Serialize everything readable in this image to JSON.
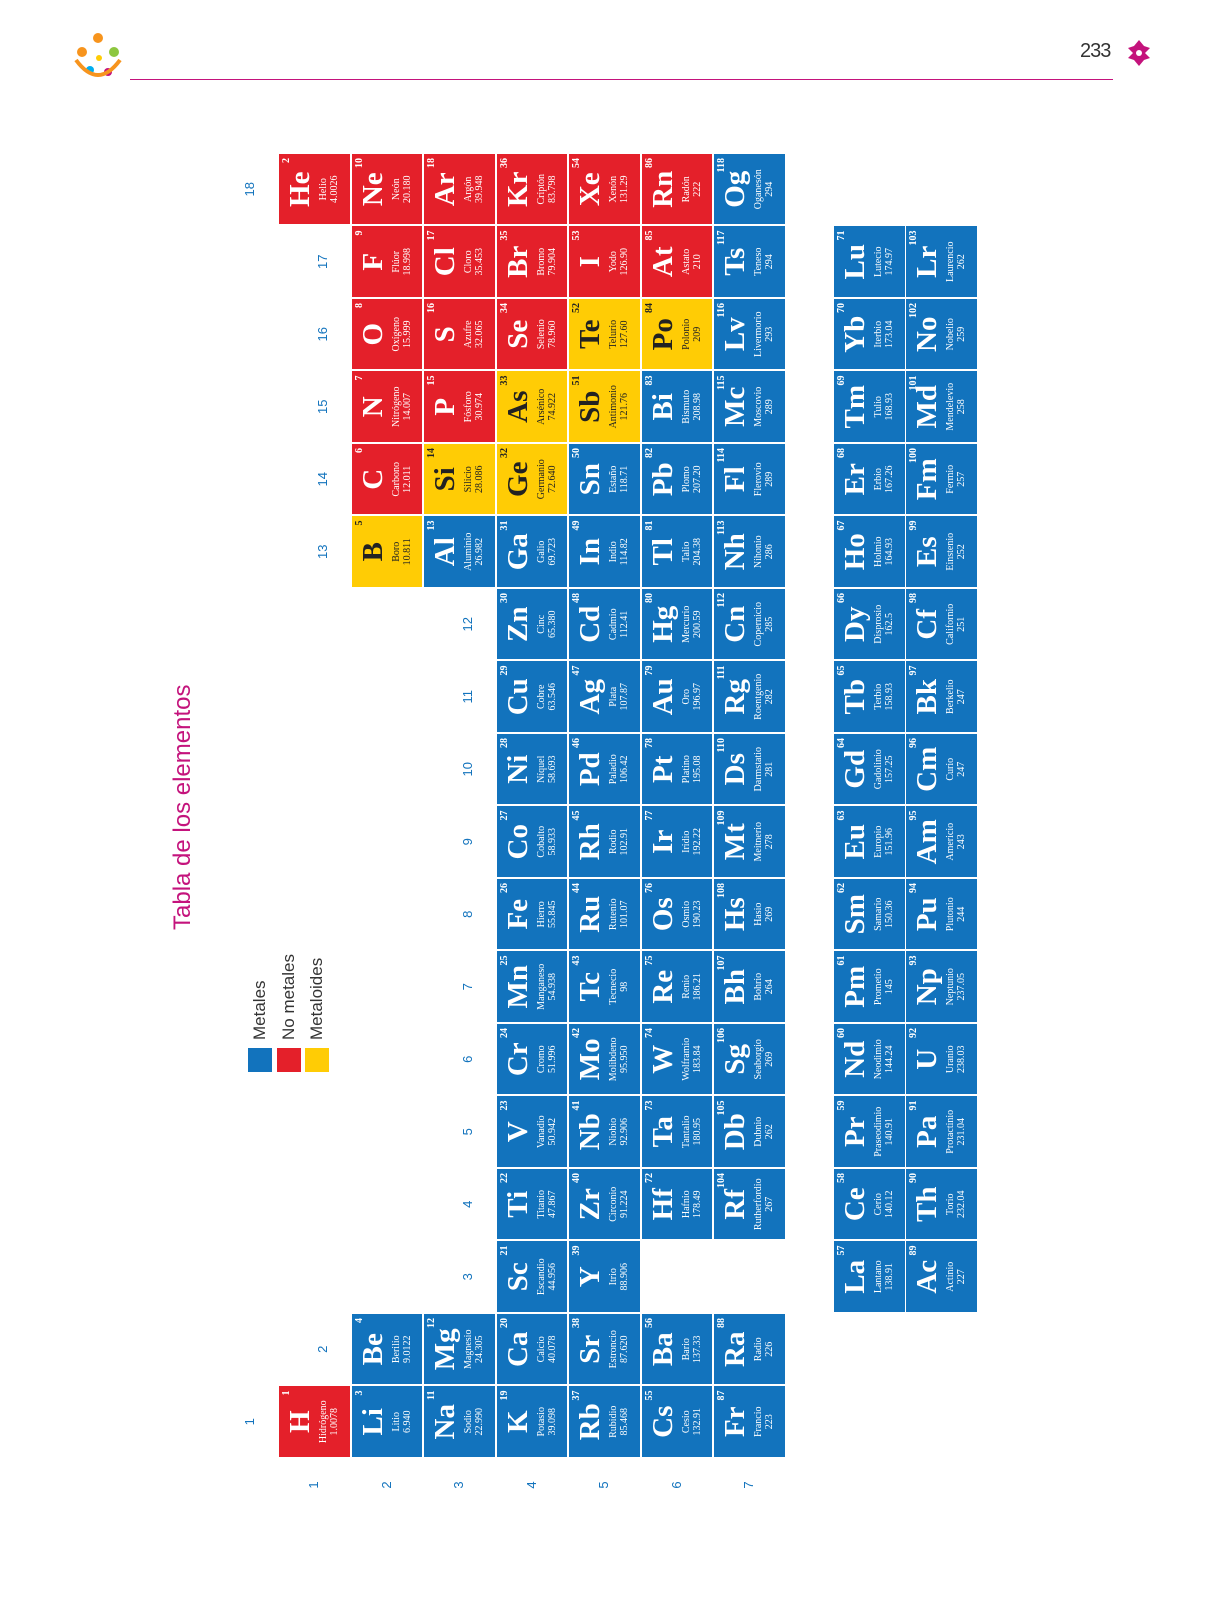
{
  "header": {
    "page_number": "233"
  },
  "title": "Tabla de los elementos",
  "legend": [
    {
      "label": "Metales",
      "color": "#1273bd"
    },
    {
      "label": "No metales",
      "color": "#e4202a"
    },
    {
      "label": "Metaloides",
      "color": "#ffcc05"
    }
  ],
  "group_labels": [
    1,
    2,
    3,
    4,
    5,
    6,
    7,
    8,
    9,
    10,
    11,
    12,
    13,
    14,
    15,
    16,
    17,
    18
  ],
  "period_labels": [
    1,
    2,
    3,
    4,
    5,
    6,
    7
  ],
  "periods": [
    [
      {
        "number": 1,
        "symbol": "H",
        "name": "Hidrógeno",
        "mass": "1.0078",
        "color": "#e4202a"
      },
      {
        "number": 2,
        "symbol": "He",
        "name": "Helio",
        "mass": "4.0026",
        "color": "#e4202a"
      }
    ],
    [
      {
        "number": 3,
        "symbol": "Li",
        "name": "Litio",
        "mass": "6.940",
        "color": "#1273bd"
      },
      {
        "number": 4,
        "symbol": "Be",
        "name": "Berilio",
        "mass": "9.0122",
        "color": "#1273bd"
      },
      {
        "number": 5,
        "symbol": "B",
        "name": "Boro",
        "mass": "10.811",
        "color": "#ffcc05"
      },
      {
        "number": 6,
        "symbol": "C",
        "name": "Carbono",
        "mass": "12.011",
        "color": "#e4202a"
      },
      {
        "number": 7,
        "symbol": "N",
        "name": "Nitrógeno",
        "mass": "14.007",
        "color": "#e4202a"
      },
      {
        "number": 8,
        "symbol": "O",
        "name": "Oxígeno",
        "mass": "15.999",
        "color": "#e4202a"
      },
      {
        "number": 9,
        "symbol": "F",
        "name": "Flúor",
        "mass": "18.998",
        "color": "#e4202a"
      },
      {
        "number": 10,
        "symbol": "Ne",
        "name": "Neón",
        "mass": "20.180",
        "color": "#e4202a"
      }
    ],
    [
      {
        "number": 11,
        "symbol": "Na",
        "name": "Sodio",
        "mass": "22.990",
        "color": "#1273bd"
      },
      {
        "number": 12,
        "symbol": "Mg",
        "name": "Magnesio",
        "mass": "24.305",
        "color": "#1273bd"
      },
      {
        "number": 13,
        "symbol": "Al",
        "name": "Aluminio",
        "mass": "26.982",
        "color": "#1273bd"
      },
      {
        "number": 14,
        "symbol": "Si",
        "name": "Silicio",
        "mass": "28.086",
        "color": "#ffcc05"
      },
      {
        "number": 15,
        "symbol": "P",
        "name": "Fósforo",
        "mass": "30.974",
        "color": "#e4202a"
      },
      {
        "number": 16,
        "symbol": "S",
        "name": "Azufre",
        "mass": "32.065",
        "color": "#e4202a"
      },
      {
        "number": 17,
        "symbol": "Cl",
        "name": "Cloro",
        "mass": "35.453",
        "color": "#e4202a"
      },
      {
        "number": 18,
        "symbol": "Ar",
        "name": "Argón",
        "mass": "39.948",
        "color": "#e4202a"
      }
    ],
    [
      {
        "number": 19,
        "symbol": "K",
        "name": "Potasio",
        "mass": "39.098",
        "color": "#1273bd"
      },
      {
        "number": 20,
        "symbol": "Ca",
        "name": "Calcio",
        "mass": "40.078",
        "color": "#1273bd"
      },
      {
        "number": 21,
        "symbol": "Sc",
        "name": "Escandio",
        "mass": "44.956",
        "color": "#1273bd"
      },
      {
        "number": 22,
        "symbol": "Ti",
        "name": "Titanio",
        "mass": "47.867",
        "color": "#1273bd"
      },
      {
        "number": 23,
        "symbol": "V",
        "name": "Vanadio",
        "mass": "50.942",
        "color": "#1273bd"
      },
      {
        "number": 24,
        "symbol": "Cr",
        "name": "Cromo",
        "mass": "51.996",
        "color": "#1273bd"
      },
      {
        "number": 25,
        "symbol": "Mn",
        "name": "Manganeso",
        "mass": "54.938",
        "color": "#1273bd"
      },
      {
        "number": 26,
        "symbol": "Fe",
        "name": "Hierro",
        "mass": "55.845",
        "color": "#1273bd"
      },
      {
        "number": 27,
        "symbol": "Co",
        "name": "Cobalto",
        "mass": "58.933",
        "color": "#1273bd"
      },
      {
        "number": 28,
        "symbol": "Ni",
        "name": "Níquel",
        "mass": "58.693",
        "color": "#1273bd"
      },
      {
        "number": 29,
        "symbol": "Cu",
        "name": "Cobre",
        "mass": "63.546",
        "color": "#1273bd"
      },
      {
        "number": 30,
        "symbol": "Zn",
        "name": "Cinc",
        "mass": "65.380",
        "color": "#1273bd"
      },
      {
        "number": 31,
        "symbol": "Ga",
        "name": "Galio",
        "mass": "69.723",
        "color": "#1273bd"
      },
      {
        "number": 32,
        "symbol": "Ge",
        "name": "Germanio",
        "mass": "72.640",
        "color": "#ffcc05"
      },
      {
        "number": 33,
        "symbol": "As",
        "name": "Arsénico",
        "mass": "74.922",
        "color": "#ffcc05"
      },
      {
        "number": 34,
        "symbol": "Se",
        "name": "Selenio",
        "mass": "78.960",
        "color": "#e4202a"
      },
      {
        "number": 35,
        "symbol": "Br",
        "name": "Bromo",
        "mass": "79.904",
        "color": "#e4202a"
      },
      {
        "number": 36,
        "symbol": "Kr",
        "name": "Criptón",
        "mass": "83.798",
        "color": "#e4202a"
      }
    ],
    [
      {
        "number": 37,
        "symbol": "Rb",
        "name": "Rubidio",
        "mass": "85.468",
        "color": "#1273bd"
      },
      {
        "number": 38,
        "symbol": "Sr",
        "name": "Estroncio",
        "mass": "87.620",
        "color": "#1273bd"
      },
      {
        "number": 39,
        "symbol": "Y",
        "name": "Itrio",
        "mass": "88.906",
        "color": "#1273bd"
      },
      {
        "number": 40,
        "symbol": "Zr",
        "name": "Circonio",
        "mass": "91.224",
        "color": "#1273bd"
      },
      {
        "number": 41,
        "symbol": "Nb",
        "name": "Niobio",
        "mass": "92.906",
        "color": "#1273bd"
      },
      {
        "number": 42,
        "symbol": "Mo",
        "name": "Molibdeno",
        "mass": "95.950",
        "color": "#1273bd"
      },
      {
        "number": 43,
        "symbol": "Tc",
        "name": "Tecnecio",
        "mass": "98",
        "color": "#1273bd"
      },
      {
        "number": 44,
        "symbol": "Ru",
        "name": "Rutenio",
        "mass": "101.07",
        "color": "#1273bd"
      },
      {
        "number": 45,
        "symbol": "Rh",
        "name": "Rodio",
        "mass": "102.91",
        "color": "#1273bd"
      },
      {
        "number": 46,
        "symbol": "Pd",
        "name": "Paladio",
        "mass": "106.42",
        "color": "#1273bd"
      },
      {
        "number": 47,
        "symbol": "Ag",
        "name": "Plata",
        "mass": "107.87",
        "color": "#1273bd"
      },
      {
        "number": 48,
        "symbol": "Cd",
        "name": "Cadmio",
        "mass": "112.41",
        "color": "#1273bd"
      },
      {
        "number": 49,
        "symbol": "In",
        "name": "Indio",
        "mass": "114.82",
        "color": "#1273bd"
      },
      {
        "number": 50,
        "symbol": "Sn",
        "name": "Estaño",
        "mass": "118.71",
        "color": "#1273bd"
      },
      {
        "number": 51,
        "symbol": "Sb",
        "name": "Antimonio",
        "mass": "121.76",
        "color": "#ffcc05"
      },
      {
        "number": 52,
        "symbol": "Te",
        "name": "Telurio",
        "mass": "127.60",
        "color": "#ffcc05"
      },
      {
        "number": 53,
        "symbol": "I",
        "name": "Yodo",
        "mass": "126.90",
        "color": "#e4202a"
      },
      {
        "number": 54,
        "symbol": "Xe",
        "name": "Xenón",
        "mass": "131.29",
        "color": "#e4202a"
      }
    ],
    [
      {
        "number": 55,
        "symbol": "Cs",
        "name": "Cesio",
        "mass": "132.91",
        "color": "#1273bd"
      },
      {
        "number": 56,
        "symbol": "Ba",
        "name": "Bario",
        "mass": "137.33",
        "color": "#1273bd"
      },
      {
        "number": 72,
        "symbol": "Hf",
        "name": "Hafnio",
        "mass": "178.49",
        "color": "#1273bd"
      },
      {
        "number": 73,
        "symbol": "Ta",
        "name": "Tantalio",
        "mass": "180.95",
        "color": "#1273bd"
      },
      {
        "number": 74,
        "symbol": "W",
        "name": "Wolframio",
        "mass": "183.84",
        "color": "#1273bd"
      },
      {
        "number": 75,
        "symbol": "Re",
        "name": "Renio",
        "mass": "186.21",
        "color": "#1273bd"
      },
      {
        "number": 76,
        "symbol": "Os",
        "name": "Osmio",
        "mass": "190.23",
        "color": "#1273bd"
      },
      {
        "number": 77,
        "symbol": "Ir",
        "name": "Iridio",
        "mass": "192.22",
        "color": "#1273bd"
      },
      {
        "number": 78,
        "symbol": "Pt",
        "name": "Platino",
        "mass": "195.08",
        "color": "#1273bd"
      },
      {
        "number": 79,
        "symbol": "Au",
        "name": "Oro",
        "mass": "196.97",
        "color": "#1273bd"
      },
      {
        "number": 80,
        "symbol": "Hg",
        "name": "Mercurio",
        "mass": "200.59",
        "color": "#1273bd"
      },
      {
        "number": 81,
        "symbol": "Tl",
        "name": "Talio",
        "mass": "204.38",
        "color": "#1273bd"
      },
      {
        "number": 82,
        "symbol": "Pb",
        "name": "Plomo",
        "mass": "207.20",
        "color": "#1273bd"
      },
      {
        "number": 83,
        "symbol": "Bi",
        "name": "Bismuto",
        "mass": "208.98",
        "color": "#1273bd"
      },
      {
        "number": 84,
        "symbol": "Po",
        "name": "Polonio",
        "mass": "209",
        "color": "#ffcc05"
      },
      {
        "number": 85,
        "symbol": "At",
        "name": "Astato",
        "mass": "210",
        "color": "#e4202a"
      },
      {
        "number": 86,
        "symbol": "Rn",
        "name": "Radón",
        "mass": "222",
        "color": "#e4202a"
      }
    ],
    [
      {
        "number": 87,
        "symbol": "Fr",
        "name": "Francio",
        "mass": "223",
        "color": "#1273bd"
      },
      {
        "number": 88,
        "symbol": "Ra",
        "name": "Radio",
        "mass": "226",
        "color": "#1273bd"
      },
      {
        "number": 104,
        "symbol": "Rf",
        "name": "Rutherfordio",
        "mass": "267",
        "color": "#1273bd"
      },
      {
        "number": 105,
        "symbol": "Db",
        "name": "Dubnio",
        "mass": "262",
        "color": "#1273bd"
      },
      {
        "number": 106,
        "symbol": "Sg",
        "name": "Seaborgio",
        "mass": "269",
        "color": "#1273bd"
      },
      {
        "number": 107,
        "symbol": "Bh",
        "name": "Bohrio",
        "mass": "264",
        "color": "#1273bd"
      },
      {
        "number": 108,
        "symbol": "Hs",
        "name": "Hasio",
        "mass": "269",
        "color": "#1273bd"
      },
      {
        "number": 109,
        "symbol": "Mt",
        "name": "Meitnerio",
        "mass": "278",
        "color": "#1273bd"
      },
      {
        "number": 110,
        "symbol": "Ds",
        "name": "Darmstatio",
        "mass": "281",
        "color": "#1273bd"
      },
      {
        "number": 111,
        "symbol": "Rg",
        "name": "Roentgenio",
        "mass": "282",
        "color": "#1273bd"
      },
      {
        "number": 112,
        "symbol": "Cn",
        "name": "Copernicio",
        "mass": "285",
        "color": "#1273bd"
      },
      {
        "number": 113,
        "symbol": "Nh",
        "name": "Nihonio",
        "mass": "286",
        "color": "#1273bd"
      },
      {
        "number": 114,
        "symbol": "Fl",
        "name": "Flerovio",
        "mass": "289",
        "color": "#1273bd"
      },
      {
        "number": 115,
        "symbol": "Mc",
        "name": "Moscovio",
        "mass": "289",
        "color": "#1273bd"
      },
      {
        "number": 116,
        "symbol": "Lv",
        "name": "Livermorio",
        "mass": "293",
        "color": "#1273bd"
      },
      {
        "number": 117,
        "symbol": "Ts",
        "name": "Teneso",
        "mass": "294",
        "color": "#1273bd"
      },
      {
        "number": 118,
        "symbol": "Og",
        "name": "Oganesón",
        "mass": "294",
        "color": "#1273bd"
      }
    ]
  ],
  "lanthanides": [
    {
      "number": 57,
      "symbol": "La",
      "name": "Lantano",
      "mass": "138.91",
      "color": "#1273bd"
    },
    {
      "number": 58,
      "symbol": "Ce",
      "name": "Cerio",
      "mass": "140.12",
      "color": "#1273bd"
    },
    {
      "number": 59,
      "symbol": "Pr",
      "name": "Praseodimio",
      "mass": "140.91",
      "color": "#1273bd"
    },
    {
      "number": 60,
      "symbol": "Nd",
      "name": "Neodimio",
      "mass": "144.24",
      "color": "#1273bd"
    },
    {
      "number": 61,
      "symbol": "Pm",
      "name": "Prometio",
      "mass": "145",
      "color": "#1273bd"
    },
    {
      "number": 62,
      "symbol": "Sm",
      "name": "Samario",
      "mass": "150.36",
      "color": "#1273bd"
    },
    {
      "number": 63,
      "symbol": "Eu",
      "name": "Europio",
      "mass": "151.96",
      "color": "#1273bd"
    },
    {
      "number": 64,
      "symbol": "Gd",
      "name": "Gadolinio",
      "mass": "157.25",
      "color": "#1273bd"
    },
    {
      "number": 65,
      "symbol": "Tb",
      "name": "Terbio",
      "mass": "158.93",
      "color": "#1273bd"
    },
    {
      "number": 66,
      "symbol": "Dy",
      "name": "Disprosio",
      "mass": "162.5",
      "color": "#1273bd"
    },
    {
      "number": 67,
      "symbol": "Ho",
      "name": "Holmio",
      "mass": "164.93",
      "color": "#1273bd"
    },
    {
      "number": 68,
      "symbol": "Er",
      "name": "Erbio",
      "mass": "167.26",
      "color": "#1273bd"
    },
    {
      "number": 69,
      "symbol": "Tm",
      "name": "Tulio",
      "mass": "168.93",
      "color": "#1273bd"
    },
    {
      "number": 70,
      "symbol": "Yb",
      "name": "Iterbio",
      "mass": "173.04",
      "color": "#1273bd"
    },
    {
      "number": 71,
      "symbol": "Lu",
      "name": "Lutecio",
      "mass": "174.97",
      "color": "#1273bd"
    }
  ],
  "actinides": [
    {
      "number": 89,
      "symbol": "Ac",
      "name": "Actinio",
      "mass": "227",
      "color": "#1273bd"
    },
    {
      "number": 90,
      "symbol": "Th",
      "name": "Torio",
      "mass": "232.04",
      "color": "#1273bd"
    },
    {
      "number": 91,
      "symbol": "Pa",
      "name": "Protactinio",
      "mass": "231.04",
      "color": "#1273bd"
    },
    {
      "number": 92,
      "symbol": "U",
      "name": "Uranio",
      "mass": "238.03",
      "color": "#1273bd"
    },
    {
      "number": 93,
      "symbol": "Np",
      "name": "Neptunio",
      "mass": "237.05",
      "color": "#1273bd"
    },
    {
      "number": 94,
      "symbol": "Pu",
      "name": "Plutonio",
      "mass": "244",
      "color": "#1273bd"
    },
    {
      "number": 95,
      "symbol": "Am",
      "name": "Americio",
      "mass": "243",
      "color": "#1273bd"
    },
    {
      "number": 96,
      "symbol": "Cm",
      "name": "Curio",
      "mass": "247",
      "color": "#1273bd"
    },
    {
      "number": 97,
      "symbol": "Bk",
      "name": "Berkelio",
      "mass": "247",
      "color": "#1273bd"
    },
    {
      "number": 98,
      "symbol": "Cf",
      "name": "Californio",
      "mass": "251",
      "color": "#1273bd"
    },
    {
      "number": 99,
      "symbol": "Es",
      "name": "Einstenio",
      "mass": "252",
      "color": "#1273bd"
    },
    {
      "number": 100,
      "symbol": "Fm",
      "name": "Fermio",
      "mass": "257",
      "color": "#1273bd"
    },
    {
      "number": 101,
      "symbol": "Md",
      "name": "Mendelevio",
      "mass": "258",
      "color": "#1273bd"
    },
    {
      "number": 102,
      "symbol": "No",
      "name": "Nobelio",
      "mass": "259",
      "color": "#1273bd"
    },
    {
      "number": 103,
      "symbol": "Lr",
      "name": "Laurencio",
      "mass": "262",
      "color": "#1273bd"
    }
  ]
}
